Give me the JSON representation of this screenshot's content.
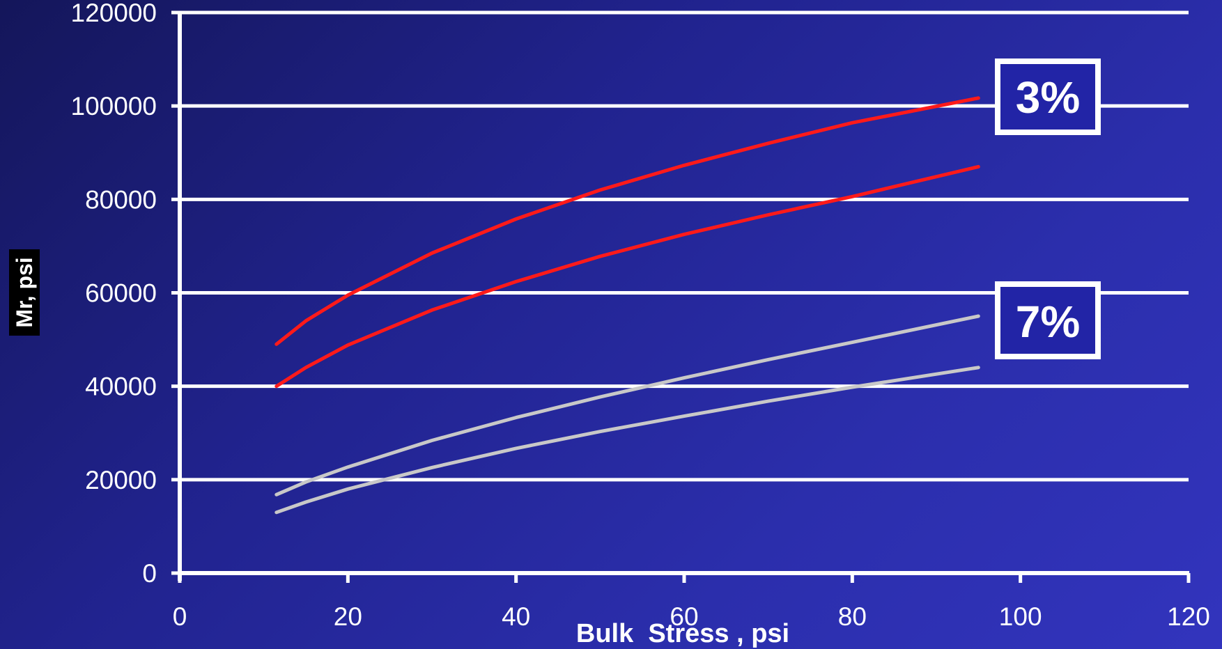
{
  "chart_data": {
    "type": "line",
    "title": "",
    "xlabel": "Bulk  Stress , psi",
    "ylabel": "Mr, psi",
    "xlim": [
      0,
      120
    ],
    "ylim": [
      0,
      120000
    ],
    "xticks": [
      0,
      20,
      40,
      60,
      80,
      100,
      120
    ],
    "yticks": [
      0,
      20000,
      40000,
      60000,
      80000,
      100000,
      120000
    ],
    "grid": "horizontal",
    "annotations": [
      {
        "text": "3%",
        "near_series": "red"
      },
      {
        "text": "7%",
        "near_series": "gray"
      }
    ],
    "series": [
      {
        "color": "#ff1a1a",
        "x": [
          11.5,
          15,
          20,
          30,
          40,
          50,
          60,
          70,
          80,
          95
        ],
        "y": [
          49000,
          54000,
          59500,
          68500,
          75800,
          82000,
          87300,
          92000,
          96400,
          101700
        ]
      },
      {
        "color": "#ff1a1a",
        "x": [
          11.5,
          15,
          20,
          30,
          40,
          50,
          60,
          70,
          80,
          95
        ],
        "y": [
          40000,
          44000,
          48800,
          56300,
          62400,
          67800,
          72500,
          76700,
          80600,
          87000
        ]
      },
      {
        "color": "#c8c8c8",
        "x": [
          11.5,
          15,
          20,
          30,
          40,
          50,
          60,
          70,
          80,
          95
        ],
        "y": [
          16800,
          19500,
          22700,
          28400,
          33300,
          37700,
          41800,
          45700,
          49400,
          55000
        ]
      },
      {
        "color": "#c8c8c8",
        "x": [
          11.5,
          15,
          20,
          30,
          40,
          50,
          60,
          70,
          80,
          95
        ],
        "y": [
          13000,
          15200,
          18000,
          22600,
          26700,
          30300,
          33600,
          36800,
          39800,
          44000
        ]
      }
    ]
  }
}
